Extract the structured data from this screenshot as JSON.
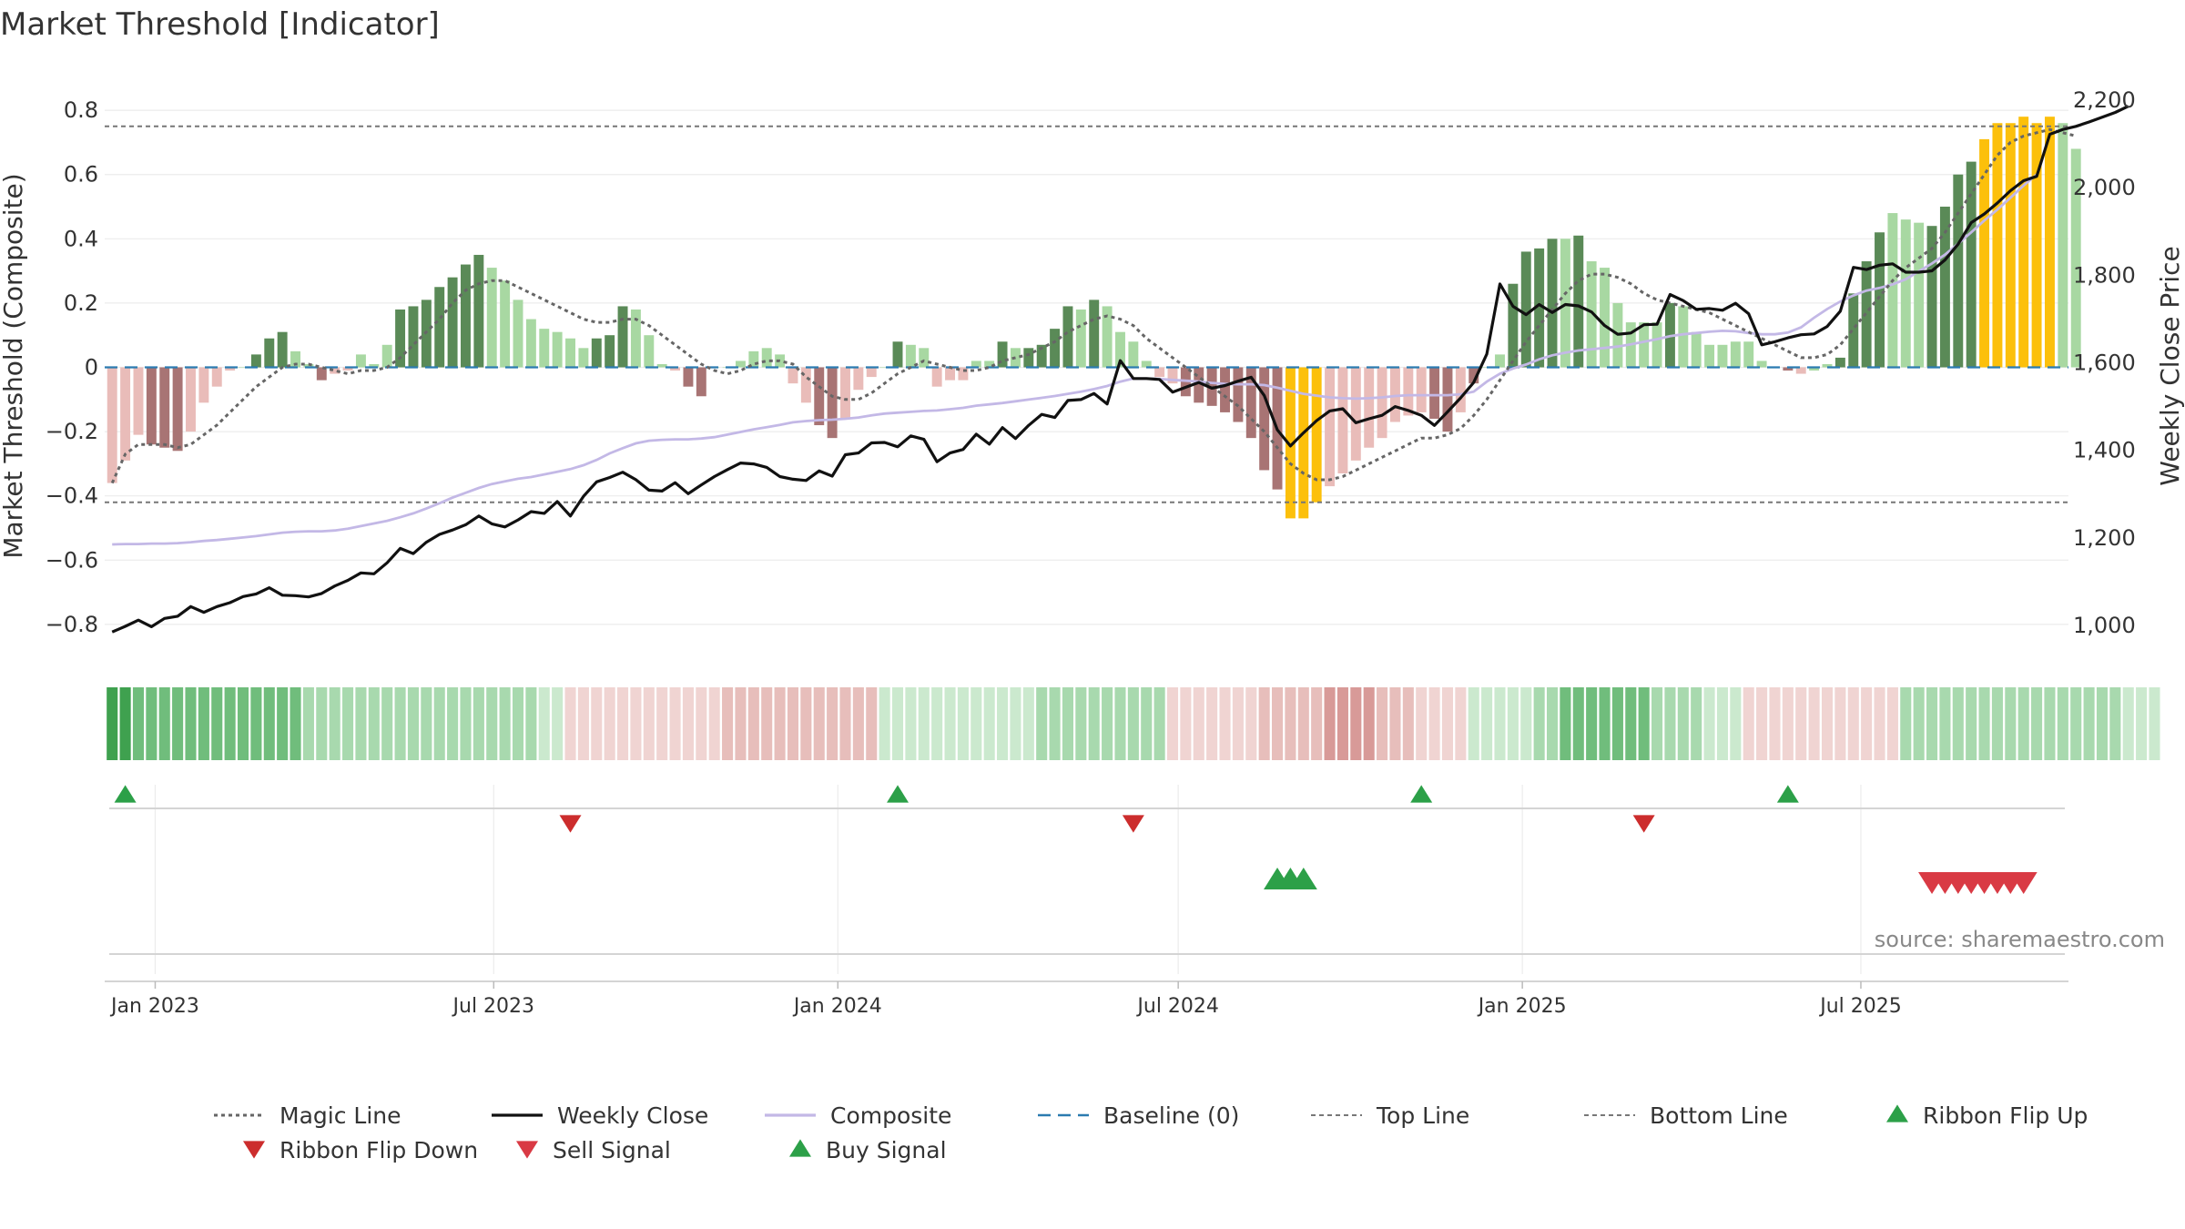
{
  "title": "Market Threshold [Indicator]",
  "source": "source: sharemaestro.com",
  "colors": {
    "pos_dark": "#5a8a57",
    "pos_light": "#a8d8a2",
    "neg_dark": "#a87474",
    "neg_light": "#e9bcb9",
    "extreme": "#fcc00b",
    "magic": "#666666",
    "close": "#111111",
    "composite": "#c3b8e6",
    "baseline": "#2b7bb0",
    "threshold": "#777777",
    "buy": "#2ca048",
    "sell": "#d93a44",
    "flip_down": "#cc2d2d"
  },
  "chart_data": {
    "type": "bar",
    "title": "Market Threshold [Indicator]",
    "ylabel": "Market Threshold (Composite)",
    "y2label": "Weekly Close Price",
    "ylim": [
      -0.84,
      0.84
    ],
    "y2lim": [
      950,
      2250
    ],
    "yticks": [
      0.8,
      0.6,
      0.4,
      0.2,
      0,
      -0.2,
      -0.4,
      -0.6,
      -0.8
    ],
    "ytick_labels": [
      "0.8",
      "0.6",
      "0.4",
      "0.2",
      "0",
      "−0.2",
      "−0.4",
      "−0.6",
      "−0.8"
    ],
    "y2ticks": [
      2200,
      2000,
      1800,
      1600,
      1400,
      1200,
      1000
    ],
    "y2tick_labels": [
      "2,200",
      "2,000",
      "1,800",
      "1,600",
      "1,400",
      "1,200",
      "1,000"
    ],
    "x_start": "2022-12-09",
    "x_step_days": 7,
    "xlim": [
      "2022-12-05",
      "2025-10-20"
    ],
    "xticks": [
      {
        "date": "2023-01-01",
        "label": "Jan 2023"
      },
      {
        "date": "2023-07-01",
        "label": "Jul 2023"
      },
      {
        "date": "2024-01-01",
        "label": "Jan 2024"
      },
      {
        "date": "2024-07-01",
        "label": "Jul 2024"
      },
      {
        "date": "2025-01-01",
        "label": "Jan 2025"
      },
      {
        "date": "2025-07-01",
        "label": "Jul 2025"
      }
    ],
    "top_line": 0.75,
    "bottom_line": -0.42,
    "threshold_values": [
      -0.36,
      -0.29,
      -0.21,
      -0.24,
      -0.25,
      -0.26,
      -0.2,
      -0.11,
      -0.06,
      -0.01,
      0,
      0.04,
      0.09,
      0.11,
      0.05,
      0.01,
      -0.04,
      -0.02,
      -0.01,
      0.04,
      0.01,
      0.07,
      0.18,
      0.19,
      0.21,
      0.25,
      0.28,
      0.32,
      0.35,
      0.31,
      0.27,
      0.21,
      0.15,
      0.12,
      0.11,
      0.09,
      0.06,
      0.09,
      0.1,
      0.19,
      0.18,
      0.1,
      0.01,
      -0.01,
      -0.06,
      -0.09,
      0,
      0,
      0.02,
      0.05,
      0.06,
      0.04,
      -0.05,
      -0.11,
      -0.18,
      -0.22,
      -0.16,
      -0.07,
      -0.03,
      0,
      0.08,
      0.07,
      0.06,
      -0.06,
      -0.04,
      -0.04,
      0.02,
      0.02,
      0.08,
      0.06,
      0.06,
      0.07,
      0.12,
      0.19,
      0.18,
      0.21,
      0.19,
      0.11,
      0.08,
      0.02,
      -0.03,
      -0.05,
      -0.09,
      -0.11,
      -0.12,
      -0.14,
      -0.17,
      -0.22,
      -0.32,
      -0.38,
      -0.47,
      -0.47,
      -0.42,
      -0.37,
      -0.33,
      -0.29,
      -0.25,
      -0.22,
      -0.17,
      -0.15,
      -0.14,
      -0.16,
      -0.2,
      -0.14,
      -0.05,
      0,
      0.04,
      0.26,
      0.36,
      0.37,
      0.4,
      0.4,
      0.41,
      0.33,
      0.31,
      0.2,
      0.14,
      0.14,
      0.14,
      0.2,
      0.19,
      0.11,
      0.07,
      0.07,
      0.08,
      0.08,
      0.02,
      0,
      -0.01,
      -0.02,
      -0.01,
      0.01,
      0.03,
      0.23,
      0.33,
      0.42,
      0.48,
      0.46,
      0.45,
      0.44,
      0.5,
      0.6,
      0.64,
      0.71,
      0.76,
      0.76,
      0.78,
      0.76,
      0.78,
      0.76,
      0.68
    ],
    "bar_kinds": [
      "nl",
      "nl",
      "nl",
      "nd",
      "nd",
      "nd",
      "nl",
      "nl",
      "nl",
      "nl",
      "z",
      "pd",
      "pd",
      "pd",
      "pl",
      "pl",
      "nd",
      "nl",
      "nl",
      "pl",
      "pl",
      "pl",
      "pd",
      "pd",
      "pd",
      "pd",
      "pd",
      "pd",
      "pd",
      "pl",
      "pl",
      "pl",
      "pl",
      "pl",
      "pl",
      "pl",
      "pl",
      "pd",
      "pd",
      "pd",
      "pl",
      "pl",
      "pl",
      "nl",
      "nd",
      "nd",
      "z",
      "z",
      "pl",
      "pl",
      "pl",
      "pl",
      "nl",
      "nl",
      "nd",
      "nd",
      "nl",
      "nl",
      "nl",
      "z",
      "pd",
      "pl",
      "pl",
      "nl",
      "nl",
      "nl",
      "pl",
      "pl",
      "pd",
      "pl",
      "pd",
      "pd",
      "pd",
      "pd",
      "pl",
      "pd",
      "pl",
      "pl",
      "pl",
      "pl",
      "nl",
      "nl",
      "nd",
      "nd",
      "nd",
      "nd",
      "nd",
      "nd",
      "nd",
      "nd",
      "y",
      "y",
      "y",
      "nl",
      "nl",
      "nl",
      "nl",
      "nl",
      "nl",
      "nl",
      "nl",
      "nd",
      "nd",
      "nl",
      "nd",
      "z",
      "pl",
      "pd",
      "pd",
      "pd",
      "pd",
      "pl",
      "pd",
      "pl",
      "pl",
      "pl",
      "pl",
      "pl",
      "pl",
      "pd",
      "pl",
      "pl",
      "pl",
      "pl",
      "pl",
      "pl",
      "z",
      "nl",
      "nd",
      "nl",
      "pl",
      "pl",
      "pd",
      "pd",
      "pd",
      "pd",
      "pl",
      "pl",
      "pl",
      "pd",
      "pd",
      "pd",
      "pd",
      "y",
      "y",
      "y",
      "y",
      "y",
      "y",
      "pl"
    ],
    "magic_line": [
      -0.36,
      -0.27,
      -0.24,
      -0.24,
      -0.24,
      -0.25,
      -0.24,
      -0.21,
      -0.18,
      -0.14,
      -0.1,
      -0.06,
      -0.03,
      0,
      0.01,
      0.01,
      0,
      -0.01,
      -0.02,
      -0.01,
      -0.01,
      0,
      0.03,
      0.07,
      0.11,
      0.15,
      0.2,
      0.24,
      0.26,
      0.27,
      0.27,
      0.25,
      0.23,
      0.21,
      0.19,
      0.17,
      0.15,
      0.14,
      0.14,
      0.15,
      0.15,
      0.13,
      0.1,
      0.07,
      0.04,
      0.01,
      -0.01,
      -0.02,
      -0.01,
      0.01,
      0.02,
      0.02,
      0.01,
      -0.03,
      -0.06,
      -0.09,
      -0.1,
      -0.1,
      -0.08,
      -0.05,
      -0.02,
      0,
      0.02,
      0.01,
      0,
      -0.01,
      -0.01,
      0,
      0.02,
      0.03,
      0.04,
      0.06,
      0.08,
      0.11,
      0.13,
      0.15,
      0.16,
      0.15,
      0.13,
      0.09,
      0.06,
      0.03,
      0,
      -0.03,
      -0.06,
      -0.09,
      -0.12,
      -0.16,
      -0.2,
      -0.25,
      -0.3,
      -0.33,
      -0.35,
      -0.35,
      -0.34,
      -0.32,
      -0.3,
      -0.28,
      -0.26,
      -0.24,
      -0.22,
      -0.22,
      -0.21,
      -0.19,
      -0.15,
      -0.1,
      -0.04,
      0.02,
      0.08,
      0.13,
      0.18,
      0.23,
      0.27,
      0.29,
      0.29,
      0.28,
      0.26,
      0.23,
      0.21,
      0.2,
      0.19,
      0.18,
      0.17,
      0.15,
      0.13,
      0.11,
      0.09,
      0.07,
      0.05,
      0.03,
      0.03,
      0.04,
      0.07,
      0.12,
      0.17,
      0.22,
      0.27,
      0.31,
      0.34,
      0.37,
      0.42,
      0.48,
      0.54,
      0.6,
      0.66,
      0.7,
      0.72,
      0.73,
      0.74,
      0.73,
      0.72
    ],
    "weekly_close": [
      985,
      998,
      1012,
      997,
      1016,
      1021,
      1043,
      1030,
      1043,
      1052,
      1066,
      1072,
      1086,
      1069,
      1068,
      1065,
      1073,
      1090,
      1103,
      1120,
      1118,
      1143,
      1176,
      1164,
      1190,
      1208,
      1218,
      1230,
      1250,
      1232,
      1225,
      1241,
      1260,
      1256,
      1283,
      1250,
      1295,
      1328,
      1338,
      1350,
      1333,
      1309,
      1307,
      1326,
      1301,
      1321,
      1340,
      1356,
      1371,
      1369,
      1361,
      1340,
      1334,
      1331,
      1353,
      1341,
      1390,
      1394,
      1417,
      1418,
      1408,
      1433,
      1425,
      1374,
      1394,
      1402,
      1437,
      1414,
      1452,
      1427,
      1457,
      1482,
      1475,
      1514,
      1516,
      1530,
      1506,
      1605,
      1564,
      1564,
      1562,
      1533,
      1544,
      1555,
      1542,
      1548,
      1558,
      1567,
      1525,
      1447,
      1410,
      1440,
      1468,
      1490,
      1495,
      1463,
      1472,
      1480,
      1500,
      1491,
      1480,
      1457,
      1488,
      1520,
      1555,
      1620,
      1780,
      1729,
      1710,
      1733,
      1715,
      1733,
      1730,
      1716,
      1685,
      1665,
      1668,
      1687,
      1688,
      1756,
      1742,
      1722,
      1724,
      1720,
      1736,
      1712,
      1641,
      1648,
      1657,
      1664,
      1666,
      1683,
      1718,
      1818,
      1813,
      1823,
      1826,
      1807,
      1807,
      1810,
      1835,
      1871,
      1920,
      1940,
      1965,
      1993,
      2016,
      2026,
      2122,
      2133,
      2140,
      2150,
      2161,
      2172,
      2186
    ],
    "composite": [
      1185,
      1186,
      1186,
      1187,
      1187,
      1188,
      1190,
      1193,
      1195,
      1198,
      1201,
      1204,
      1208,
      1212,
      1214,
      1215,
      1215,
      1217,
      1221,
      1227,
      1233,
      1239,
      1247,
      1256,
      1267,
      1279,
      1292,
      1303,
      1314,
      1323,
      1329,
      1335,
      1339,
      1345,
      1351,
      1357,
      1366,
      1378,
      1393,
      1405,
      1416,
      1422,
      1424,
      1425,
      1425,
      1427,
      1430,
      1436,
      1442,
      1448,
      1453,
      1458,
      1464,
      1467,
      1469,
      1470,
      1472,
      1475,
      1480,
      1484,
      1486,
      1488,
      1490,
      1491,
      1494,
      1497,
      1502,
      1505,
      1508,
      1512,
      1516,
      1520,
      1524,
      1529,
      1534,
      1540,
      1547,
      1557,
      1564,
      1564,
      1563,
      1561,
      1559,
      1557,
      1554,
      1552,
      1551,
      1551,
      1549,
      1543,
      1536,
      1529,
      1525,
      1521,
      1519,
      1518,
      1519,
      1521,
      1524,
      1526,
      1526,
      1526,
      1526,
      1528,
      1534,
      1557,
      1575,
      1587,
      1596,
      1608,
      1617,
      1623,
      1628,
      1631,
      1634,
      1637,
      1642,
      1648,
      1654,
      1661,
      1665,
      1668,
      1671,
      1673,
      1672,
      1668,
      1665,
      1665,
      1669,
      1681,
      1703,
      1723,
      1740,
      1754,
      1765,
      1771,
      1779,
      1791,
      1809,
      1827,
      1847,
      1872,
      1898,
      1925,
      1950,
      1977,
      2005,
      2030
    ],
    "ribbon": [
      "g3",
      "g3",
      "g2",
      "g2",
      "g2",
      "g2",
      "g2",
      "g2",
      "g2",
      "g2",
      "g2",
      "g2",
      "g2",
      "g2",
      "g2",
      "g1",
      "g1",
      "g1",
      "g1",
      "g1",
      "g1",
      "g1",
      "g1",
      "g1",
      "g1",
      "g1",
      "g1",
      "g1",
      "g1",
      "g1",
      "g1",
      "g1",
      "g1",
      "g0",
      "g0",
      "r0",
      "r0",
      "r0",
      "r0",
      "r0",
      "r0",
      "r0",
      "r0",
      "r0",
      "r0",
      "r0",
      "r0",
      "r1",
      "r1",
      "r1",
      "r1",
      "r1",
      "r1",
      "r1",
      "r1",
      "r1",
      "r1",
      "r1",
      "r1",
      "g0",
      "g0",
      "g0",
      "g0",
      "g0",
      "g0",
      "g0",
      "g0",
      "g0",
      "g0",
      "g0",
      "g0",
      "g1",
      "g1",
      "g1",
      "g1",
      "g1",
      "g1",
      "g1",
      "g1",
      "g1",
      "g1",
      "r0",
      "r0",
      "r0",
      "r0",
      "r0",
      "r0",
      "r0",
      "r1",
      "r1",
      "r1",
      "r1",
      "r1",
      "r2",
      "r2",
      "r2",
      "r2",
      "r1",
      "r1",
      "r1",
      "r0",
      "r0",
      "r0",
      "r0",
      "g0",
      "g0",
      "g0",
      "g0",
      "g0",
      "g1",
      "g1",
      "g2",
      "g2",
      "g2",
      "g2",
      "g2",
      "g2",
      "g2",
      "g1",
      "g1",
      "g1",
      "g1",
      "g0",
      "g0",
      "g0",
      "r0",
      "r0",
      "r0",
      "r0",
      "r0",
      "r0",
      "r0",
      "r0",
      "r0",
      "r0",
      "r0",
      "r0",
      "g1",
      "g1",
      "g1",
      "g1",
      "g1",
      "g1",
      "g1",
      "g1",
      "g1",
      "g1",
      "g1",
      "g1",
      "g1",
      "g1",
      "g1",
      "g1",
      "g1",
      "g0",
      "g0",
      "g0"
    ],
    "ribbon_flip_up": [
      "2022-12-16",
      "2024-02-02",
      "2024-11-08",
      "2025-05-23"
    ],
    "ribbon_flip_down": [
      "2023-08-11",
      "2024-06-07",
      "2025-03-07"
    ],
    "buy_signal": [
      "2024-08-23",
      "2024-08-30",
      "2024-09-06"
    ],
    "sell_signal": [
      "2025-08-08",
      "2025-08-15",
      "2025-08-22",
      "2025-08-29",
      "2025-09-05",
      "2025-09-12",
      "2025-09-19",
      "2025-09-26"
    ],
    "legend": [
      {
        "label": "Magic Line",
        "kind": "dotted-line",
        "color": "#666666"
      },
      {
        "label": "Weekly Close",
        "kind": "line",
        "color": "#111111"
      },
      {
        "label": "Composite",
        "kind": "line",
        "color": "#c3b8e6"
      },
      {
        "label": "Baseline (0)",
        "kind": "dashed-line",
        "color": "#2b7bb0"
      },
      {
        "label": "Top Line",
        "kind": "dashed-line-fine",
        "color": "#777777"
      },
      {
        "label": "Bottom Line",
        "kind": "dashed-line-fine",
        "color": "#777777"
      },
      {
        "label": "Ribbon Flip Up",
        "kind": "triangle-up",
        "color": "#2ca048"
      },
      {
        "label": "Ribbon Flip Down",
        "kind": "triangle-down",
        "color": "#cc2d2d"
      },
      {
        "label": "Sell Signal",
        "kind": "triangle-down",
        "color": "#d93a44"
      },
      {
        "label": "Buy Signal",
        "kind": "triangle-up",
        "color": "#2ca048"
      }
    ],
    "legend_placement": "bottom-center",
    "grid": true
  }
}
